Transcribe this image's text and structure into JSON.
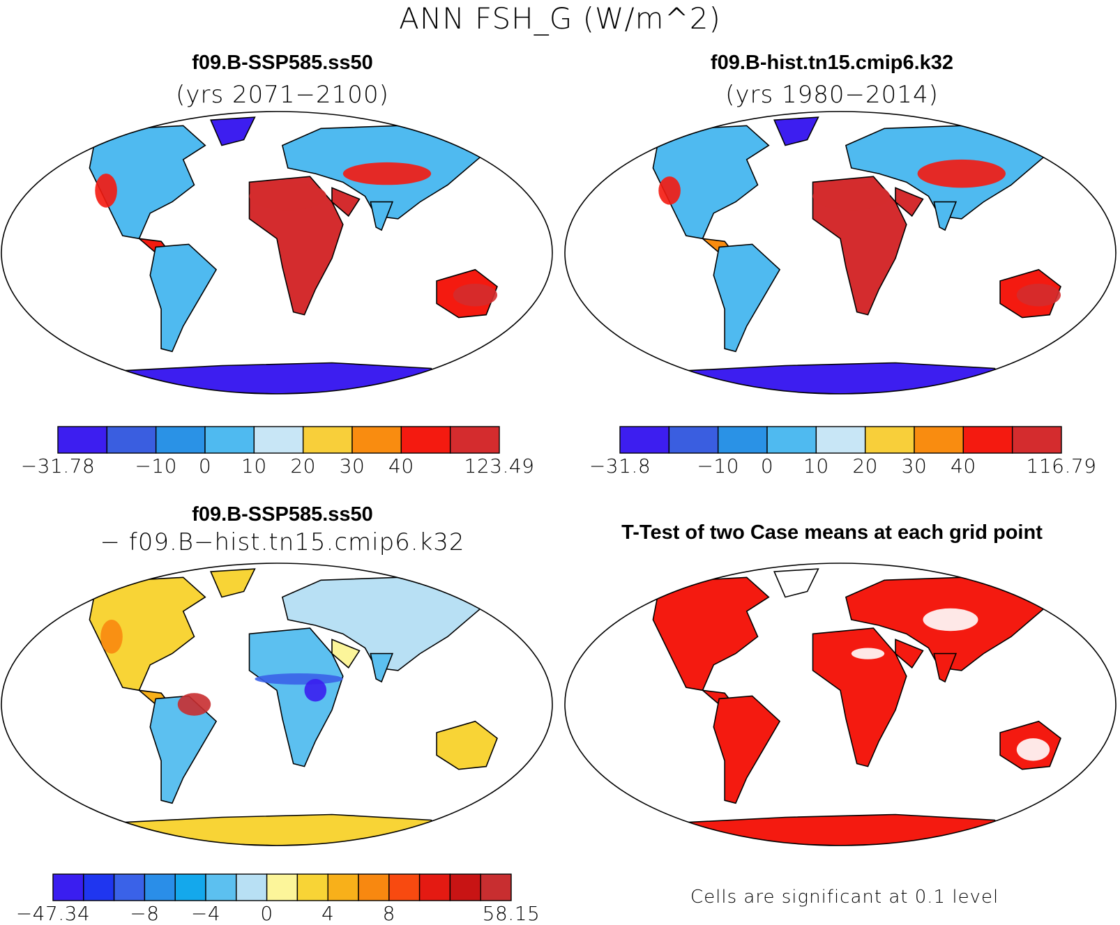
{
  "title": "ANN FSH_G (W/m^2)",
  "panels": [
    {
      "title_line1": "f09.B-SSP585.ss50",
      "title_line2": "(yrs 2071−2100)",
      "colorbar": {
        "colors": [
          "#3d1ef0",
          "#3a5ee0",
          "#2a92e6",
          "#4fbaf0",
          "#c8e6f6",
          "#f8cf3a",
          "#f98c10",
          "#f41a10",
          "#d42c2e"
        ],
        "labels": [
          "−31.78",
          "−10",
          "0",
          "10",
          "20",
          "30",
          "40",
          "123.49"
        ]
      }
    },
    {
      "title_line1": "f09.B-hist.tn15.cmip6.k32",
      "title_line2": "(yrs 1980−2014)",
      "colorbar": {
        "colors": [
          "#3d1ef0",
          "#3a5ee0",
          "#2a92e6",
          "#4fbaf0",
          "#c8e6f6",
          "#f8cf3a",
          "#f98c10",
          "#f41a10",
          "#d42c2e"
        ],
        "labels": [
          "−31.8",
          "−10",
          "0",
          "10",
          "20",
          "30",
          "40",
          "116.79"
        ]
      }
    },
    {
      "title_line1": "f09.B-SSP585.ss50",
      "title_line2": "− f09.B−hist.tn15.cmip6.k32",
      "colorbar": {
        "colors": [
          "#3a1ef0",
          "#1f36f0",
          "#3a62e8",
          "#2a8ee8",
          "#14a8ec",
          "#5cc0f0",
          "#b8e0f4",
          "#fcf59a",
          "#f8d436",
          "#f8b01a",
          "#f88810",
          "#f84a10",
          "#e41a12",
          "#c81414",
          "#c82e30"
        ],
        "labels": [
          "−47.34",
          "−8",
          "−4",
          "0",
          "4",
          "8",
          "58.15"
        ]
      }
    },
    {
      "title_line1": "T-Test of two Case means at each grid point",
      "footnote": "Cells are significant at 0.1 level"
    }
  ]
}
